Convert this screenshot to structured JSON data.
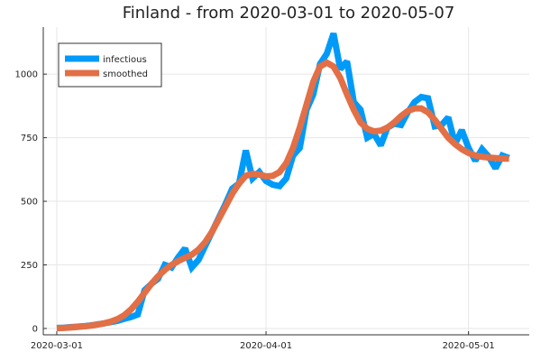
{
  "chart_data": {
    "type": "line",
    "title": "Finland - from 2020-03-01 to 2020-05-07",
    "xlabel": "",
    "ylabel": "",
    "x_start": "2020-03-01",
    "x_end": "2020-05-07",
    "xlim": [
      "2020-02-28",
      "2020-05-10"
    ],
    "ylim": [
      -25,
      1185
    ],
    "x_ticks": [
      {
        "date": "2020-03-01",
        "label": "2020-03-01"
      },
      {
        "date": "2020-04-01",
        "label": "2020-04-01"
      },
      {
        "date": "2020-05-01",
        "label": "2020-05-01"
      }
    ],
    "y_ticks": [
      {
        "value": 0,
        "label": "0"
      },
      {
        "value": 250,
        "label": "250"
      },
      {
        "value": 500,
        "label": "500"
      },
      {
        "value": 750,
        "label": "750"
      },
      {
        "value": 1000,
        "label": "1000"
      }
    ],
    "grid": true,
    "legend_position": "top-left",
    "series": [
      {
        "name": "infectious",
        "color": "#009af9",
        "values": [
          2,
          3,
          5,
          7,
          9,
          12,
          16,
          20,
          25,
          30,
          38,
          45,
          55,
          150,
          175,
          195,
          250,
          240,
          280,
          315,
          240,
          270,
          325,
          380,
          435,
          490,
          550,
          570,
          700,
          590,
          615,
          580,
          565,
          560,
          590,
          680,
          710,
          860,
          920,
          1040,
          1080,
          1160,
          1020,
          1050,
          890,
          860,
          750,
          765,
          720,
          790,
          805,
          800,
          850,
          890,
          910,
          905,
          795,
          800,
          830,
          725,
          780,
          710,
          660,
          705,
          675,
          630,
          680,
          670
        ]
      },
      {
        "name": "smoothed",
        "color": "#e26f46",
        "values": [
          1,
          2,
          4,
          6,
          8,
          11,
          15,
          20,
          27,
          37,
          52,
          75,
          105,
          140,
          175,
          205,
          230,
          250,
          265,
          278,
          290,
          310,
          340,
          380,
          430,
          480,
          530,
          570,
          600,
          608,
          605,
          598,
          600,
          615,
          650,
          710,
          790,
          880,
          970,
          1030,
          1045,
          1030,
          985,
          920,
          860,
          810,
          785,
          775,
          778,
          790,
          810,
          835,
          855,
          865,
          865,
          850,
          820,
          785,
          750,
          725,
          705,
          690,
          680,
          675,
          672,
          670,
          668,
          668
        ]
      }
    ]
  }
}
